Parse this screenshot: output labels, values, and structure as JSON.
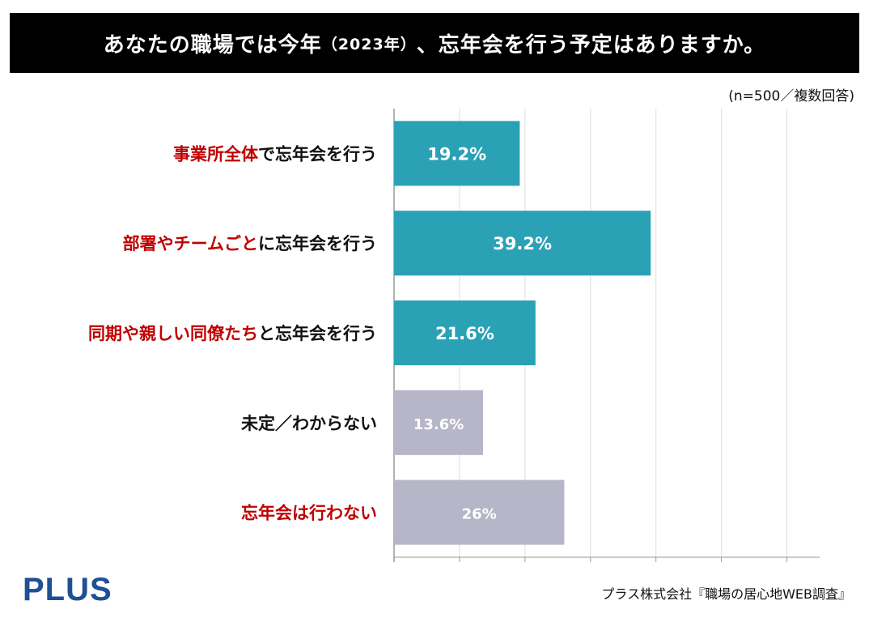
{
  "header": {
    "title_main": "あなたの職場では今年",
    "title_paren": "（2023年）",
    "title_tail": "、忘年会を行う予定はありますか。"
  },
  "note": "(n=500／複数回答)",
  "brand": "PLUS",
  "source": "プラス株式会社『職場の居心地WEB調査』",
  "colors": {
    "accent": "#c00000",
    "text": "#111111",
    "bar_yes": "#2aa1b5",
    "bar_no": "#b6b6c8",
    "grid": "#dddddd",
    "axis": "#9a9a9a"
  },
  "chart_data": {
    "type": "bar",
    "orientation": "horizontal",
    "title": "あなたの職場では今年（2023年）、忘年会を行う予定はありますか。",
    "xlim": [
      0,
      65
    ],
    "x_unit": "%",
    "categories": [
      {
        "parts": [
          {
            "text": "事業所全体",
            "emph": true
          },
          {
            "text": "で忘年会を行う",
            "emph": false
          }
        ],
        "value": 19.2,
        "value_label": "19.2%",
        "group": "yes"
      },
      {
        "parts": [
          {
            "text": "部署やチームごと",
            "emph": true
          },
          {
            "text": "に忘年会を行う",
            "emph": false
          }
        ],
        "value": 39.2,
        "value_label": "39.2%",
        "group": "yes"
      },
      {
        "parts": [
          {
            "text": "同期や親しい同僚たち",
            "emph": true
          },
          {
            "text": "と忘年会を行う",
            "emph": false
          }
        ],
        "value": 21.6,
        "value_label": "21.6%",
        "group": "yes"
      },
      {
        "parts": [
          {
            "text": "未定／わからない",
            "emph": false
          }
        ],
        "value": 13.6,
        "value_label": "13.6%",
        "group": "no"
      },
      {
        "parts": [
          {
            "text": "忘年会は行わない",
            "emph": true
          }
        ],
        "value": 26,
        "value_label": "26%",
        "group": "no"
      }
    ]
  }
}
